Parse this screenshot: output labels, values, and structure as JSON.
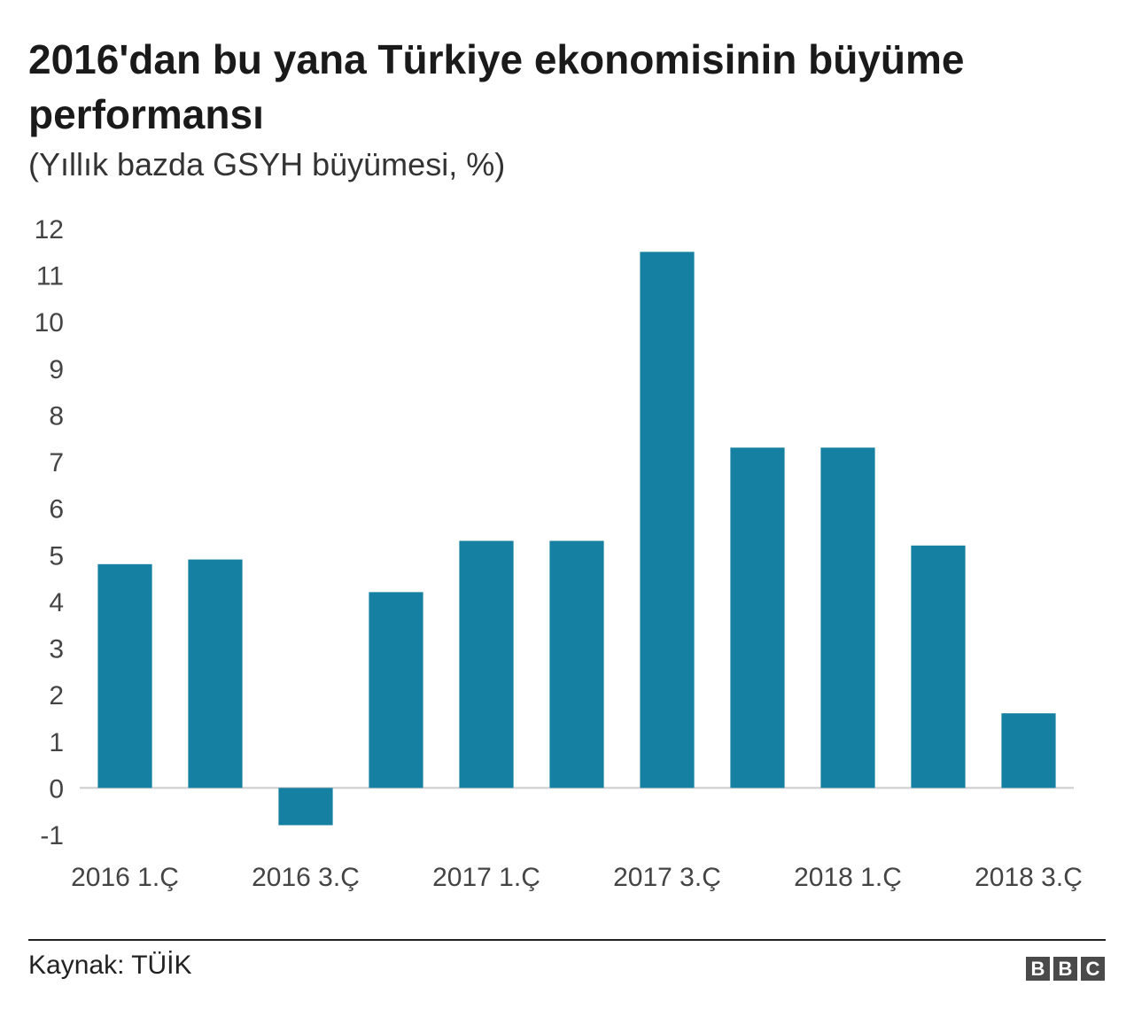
{
  "header": {
    "title": "2016'dan bu yana Türkiye ekonomisinin büyüme performansı",
    "subtitle": "(Yıllık bazda GSYH büyümesi, %)"
  },
  "chart_data": {
    "type": "bar",
    "categories": [
      "2016 1.Ç",
      "2016 2.Ç",
      "2016 3.Ç",
      "2016 4.Ç",
      "2017 1.Ç",
      "2017 2.Ç",
      "2017 3.Ç",
      "2017 4.Ç",
      "2018 1.Ç",
      "2018 2.Ç",
      "2018 3.Ç"
    ],
    "visible_x_labels": [
      "2016 1.Ç",
      "2016 3.Ç",
      "2017 1.Ç",
      "2017 3.Ç",
      "2018 1.Ç",
      "2018 3.Ç"
    ],
    "values": [
      4.8,
      4.9,
      -0.8,
      4.2,
      5.3,
      5.3,
      11.5,
      7.3,
      7.3,
      5.2,
      1.6
    ],
    "yticks": [
      "12",
      "11",
      "10",
      "9",
      "8",
      "7",
      "6",
      "5",
      "4",
      "3",
      "2",
      "1",
      "0",
      "-1"
    ],
    "ylim": [
      -1,
      12
    ],
    "bar_color": "#1580a1",
    "grid": false
  },
  "footer": {
    "source": "Kaynak: TÜİK",
    "logo_letters": [
      "B",
      "B",
      "C"
    ]
  }
}
